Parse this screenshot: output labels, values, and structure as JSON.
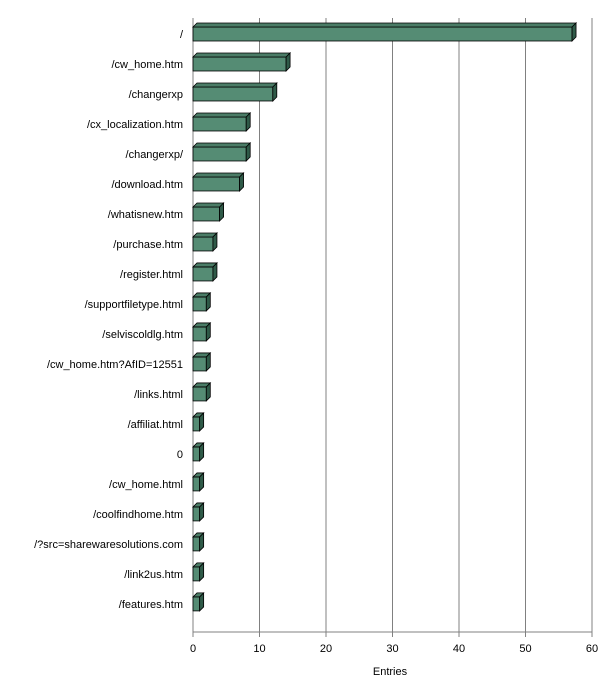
{
  "chart_data": {
    "type": "bar",
    "orientation": "horizontal",
    "style": "3d",
    "categories": [
      "/",
      "/cw_home.htm",
      "/changerxp",
      "/cx_localization.htm",
      "/changerxp/",
      "/download.htm",
      "/whatisnew.htm",
      "/purchase.htm",
      "/register.html",
      "/supportfiletype.html",
      "/selviscoldlg.htm",
      "/cw_home.htm?AfID=12551",
      "/links.html",
      "/affiliat.html",
      "0",
      "/cw_home.html",
      "/coolfindhome.htm",
      "/?src=sharewaresolutions.com",
      "/link2us.htm",
      "/features.htm"
    ],
    "values": [
      57,
      14,
      12,
      8,
      8,
      7,
      4,
      3,
      3,
      2,
      2,
      2,
      2,
      1,
      1,
      1,
      1,
      1,
      1,
      1
    ],
    "xlabel": "Entries",
    "ylabel": "",
    "xlim": [
      0,
      60
    ],
    "xticks": [
      0,
      10,
      20,
      30,
      40,
      50,
      60
    ],
    "grid": true,
    "legend": "none",
    "colors": {
      "bar_front": "#558c74",
      "bar_top": "#4a7c66",
      "bar_side": "#2f5a48",
      "bar_stroke": "#000000",
      "grid": "#808080",
      "axis": "#808080"
    }
  }
}
